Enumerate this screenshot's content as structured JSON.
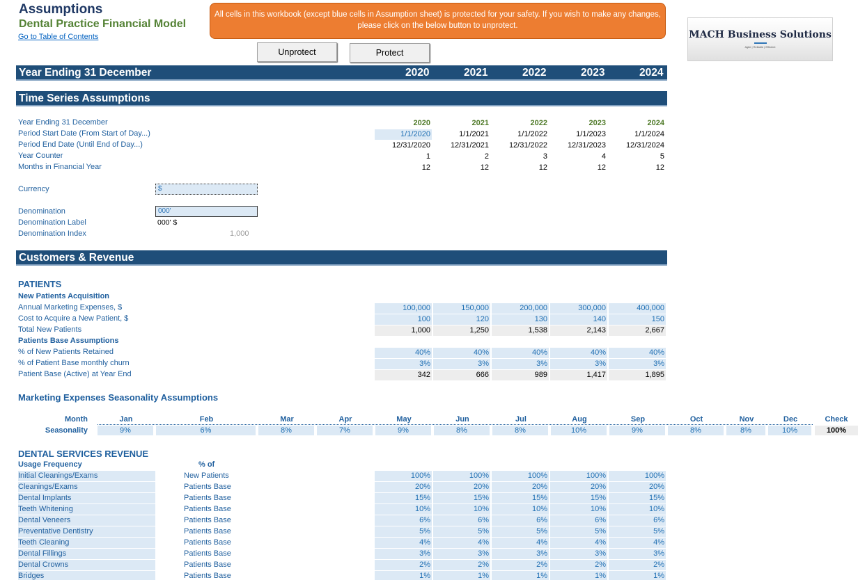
{
  "header": {
    "title": "Assumptions",
    "subtitle": "Dental Practice Financial Model",
    "toc_link": "Go to Table of Contents",
    "notice": "All cells in this workbook (except blue cells in Assumption sheet) is protected for your safety. If you wish to make any changes, please click on the below button to unprotect.",
    "unprotect_label": "Unprotect",
    "protect_label": "Protect",
    "logo_name": "MACH Business Solutions",
    "logo_tagline": "Agile | Reliable | Efficient"
  },
  "year_bar": {
    "label": "Year Ending 31 December",
    "years": [
      "2020",
      "2021",
      "2022",
      "2023",
      "2024"
    ]
  },
  "time_series": {
    "title": "Time Series Assumptions",
    "rows": [
      {
        "label": "Year Ending 31 December",
        "values": [
          "2020",
          "2021",
          "2022",
          "2023",
          "2024"
        ]
      },
      {
        "label": "Period Start Date (From Start of Day...)",
        "values": [
          "1/1/2020",
          "1/1/2021",
          "1/1/2022",
          "1/1/2023",
          "1/1/2024"
        ]
      },
      {
        "label": "Period End Date (Until End of Day...)",
        "values": [
          "12/31/2020",
          "12/31/2021",
          "12/31/2022",
          "12/31/2023",
          "12/31/2024"
        ]
      },
      {
        "label": "Year Counter",
        "values": [
          "1",
          "2",
          "3",
          "4",
          "5"
        ]
      },
      {
        "label": "Months in Financial Year",
        "values": [
          "12",
          "12",
          "12",
          "12",
          "12"
        ]
      }
    ],
    "currency_label": "Currency",
    "currency_value": "$",
    "denomination_label": "Denomination",
    "denomination_value": "000'",
    "denomination_label_label": "Denomination Label",
    "denomination_label_value": "000' $",
    "denomination_index_label": "Denomination Index",
    "denomination_index_value": "1,000"
  },
  "customers": {
    "title": "Customers & Revenue",
    "patients_title": "PATIENTS",
    "new_patients_title": "New Patients Acquisition",
    "rows1": [
      {
        "label": "Annual Marketing Expenses, $",
        "values": [
          "100,000",
          "150,000",
          "200,000",
          "300,000",
          "400,000"
        ],
        "style": "blue"
      },
      {
        "label": "Cost to Acquire a New Patient, $",
        "values": [
          "100",
          "120",
          "130",
          "140",
          "150"
        ],
        "style": "blue"
      },
      {
        "label": "Total New Patients",
        "values": [
          "1,000",
          "1,250",
          "1,538",
          "2,143",
          "2,667"
        ],
        "style": "grey"
      }
    ],
    "base_title": "Patients Base Assumptions",
    "rows2": [
      {
        "label": "% of New Patients Retained",
        "values": [
          "40%",
          "40%",
          "40%",
          "40%",
          "40%"
        ],
        "style": "blue"
      },
      {
        "label": "% of Patient Base monthly churn",
        "values": [
          "3%",
          "3%",
          "3%",
          "3%",
          "3%"
        ],
        "style": "blue"
      },
      {
        "label": "Patient Base (Active) at Year End",
        "values": [
          "342",
          "666",
          "989",
          "1,417",
          "1,895"
        ],
        "style": "grey"
      }
    ]
  },
  "seasonality": {
    "title": "Marketing Expenses Seasonality Assumptions",
    "month_label": "Month",
    "season_label": "Seasonality",
    "months": [
      "Jan",
      "Feb",
      "Mar",
      "Apr",
      "May",
      "Jun",
      "Jul",
      "Aug",
      "Sep",
      "Oct",
      "Nov",
      "Dec"
    ],
    "values": [
      "9%",
      "6%",
      "8%",
      "7%",
      "9%",
      "8%",
      "8%",
      "10%",
      "9%",
      "8%",
      "8%",
      "10%"
    ],
    "check_label": "Check",
    "check_value": "100%"
  },
  "dental": {
    "title": "DENTAL SERVICES REVENUE",
    "usage_label": "Usage Frequency",
    "pct_of_label": "% of",
    "rows": [
      {
        "label": "Initial Cleanings/Exams",
        "base": "New Patients",
        "values": [
          "100%",
          "100%",
          "100%",
          "100%",
          "100%"
        ]
      },
      {
        "label": "Cleanings/Exams",
        "base": "Patients Base",
        "values": [
          "20%",
          "20%",
          "20%",
          "20%",
          "20%"
        ]
      },
      {
        "label": "Dental Implants",
        "base": "Patients Base",
        "values": [
          "15%",
          "15%",
          "15%",
          "15%",
          "15%"
        ]
      },
      {
        "label": "Teeth Whitening",
        "base": "Patients Base",
        "values": [
          "10%",
          "10%",
          "10%",
          "10%",
          "10%"
        ]
      },
      {
        "label": "Dental Veneers",
        "base": "Patients Base",
        "values": [
          "6%",
          "6%",
          "6%",
          "6%",
          "6%"
        ]
      },
      {
        "label": "Preventative Dentistry",
        "base": "Patients Base",
        "values": [
          "5%",
          "5%",
          "5%",
          "5%",
          "5%"
        ]
      },
      {
        "label": "Teeth Cleaning",
        "base": "Patients Base",
        "values": [
          "4%",
          "4%",
          "4%",
          "4%",
          "4%"
        ]
      },
      {
        "label": "Dental Fillings",
        "base": "Patients Base",
        "values": [
          "3%",
          "3%",
          "3%",
          "3%",
          "3%"
        ]
      },
      {
        "label": "Dental Crowns",
        "base": "Patients Base",
        "values": [
          "2%",
          "2%",
          "2%",
          "2%",
          "2%"
        ]
      },
      {
        "label": "Bridges",
        "base": "Patients Base",
        "values": [
          "1%",
          "1%",
          "1%",
          "1%",
          "1%"
        ]
      }
    ]
  }
}
